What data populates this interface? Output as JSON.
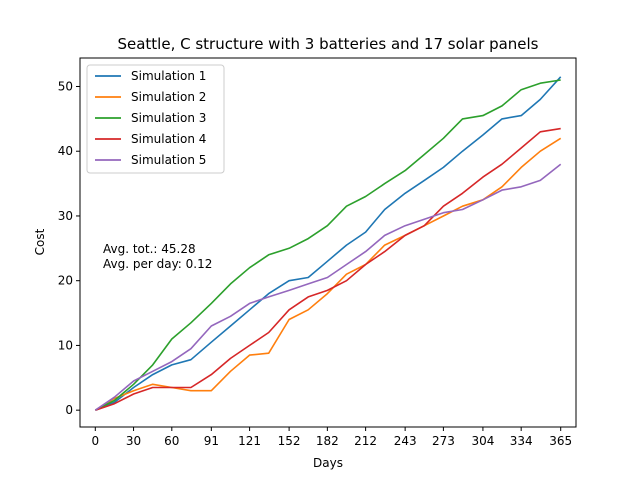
{
  "chart_data": {
    "type": "line",
    "title": "Seattle, C structure with 3 batteries and 17 solar panels",
    "xlabel": "Days",
    "ylabel": "Cost",
    "xlim": [
      -12,
      377
    ],
    "ylim": [
      -2.6,
      54.4
    ],
    "x_ticks": [
      0,
      30,
      60,
      91,
      121,
      152,
      182,
      212,
      243,
      273,
      304,
      334,
      365
    ],
    "y_ticks": [
      0,
      10,
      20,
      30,
      40,
      50
    ],
    "legend_position": "top-left",
    "grid": false,
    "annotation": [
      "Avg. tot.: 45.28",
      "Avg. per day: 0.12"
    ],
    "x": [
      0,
      15,
      30,
      45,
      60,
      75,
      91,
      106,
      121,
      136,
      152,
      167,
      182,
      197,
      212,
      227,
      243,
      258,
      273,
      288,
      304,
      319,
      334,
      349,
      365
    ],
    "series": [
      {
        "name": "Simulation 1",
        "color": "#1f77b4",
        "values": [
          0,
          1.2,
          3.5,
          5.5,
          7.0,
          7.8,
          10.5,
          13.0,
          15.5,
          18.0,
          20.0,
          20.5,
          23.0,
          25.5,
          27.5,
          31.0,
          33.5,
          35.5,
          37.5,
          40.0,
          42.5,
          45.0,
          45.5,
          48.0,
          51.5
        ]
      },
      {
        "name": "Simulation 2",
        "color": "#ff7f0e",
        "values": [
          0,
          1.8,
          3.0,
          4.0,
          3.5,
          3.0,
          3.0,
          6.0,
          8.5,
          8.8,
          14.0,
          15.5,
          18.0,
          21.0,
          22.5,
          25.5,
          27.0,
          28.5,
          30.0,
          31.5,
          32.5,
          34.5,
          37.5,
          40.0,
          42.0
        ]
      },
      {
        "name": "Simulation 3",
        "color": "#2ca02c",
        "values": [
          0,
          1.5,
          4.0,
          7.0,
          11.0,
          13.5,
          16.5,
          19.5,
          22.0,
          24.0,
          25.0,
          26.5,
          28.5,
          31.5,
          33.0,
          35.0,
          37.0,
          39.5,
          42.0,
          45.0,
          45.5,
          47.0,
          49.5,
          50.5,
          51.0
        ]
      },
      {
        "name": "Simulation 4",
        "color": "#d62728",
        "values": [
          0,
          1.0,
          2.5,
          3.5,
          3.5,
          3.5,
          5.5,
          8.0,
          10.0,
          12.0,
          15.5,
          17.5,
          18.5,
          20.0,
          22.5,
          24.5,
          27.0,
          28.5,
          31.5,
          33.5,
          36.0,
          38.0,
          40.5,
          43.0,
          43.5
        ]
      },
      {
        "name": "Simulation 5",
        "color": "#9467bd",
        "values": [
          0,
          2.0,
          4.5,
          6.0,
          7.5,
          9.5,
          13.0,
          14.5,
          16.5,
          17.5,
          18.5,
          19.5,
          20.5,
          22.5,
          24.5,
          27.0,
          28.5,
          29.5,
          30.5,
          31.0,
          32.5,
          34.0,
          34.5,
          35.5,
          38.0
        ]
      }
    ]
  }
}
